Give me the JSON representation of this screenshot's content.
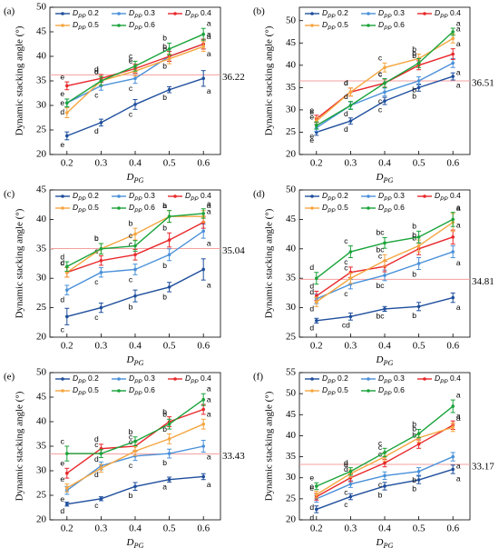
{
  "chart_data": [
    {
      "type": "line",
      "title": "(a)",
      "x_label": "DPG",
      "y_label": "Dynamic stacking angle (°)",
      "categories": [
        "0.2",
        "0.3",
        "0.4",
        "0.5",
        "0.6"
      ],
      "ylim": [
        20,
        50
      ],
      "yticks": [
        20,
        25,
        30,
        35,
        40,
        45,
        50
      ],
      "reference": 36.22,
      "series": [
        {
          "name": "DPP 0.2",
          "color": "#1f4e9c",
          "values": [
            23.8,
            26.5,
            30.2,
            33.2,
            35.5
          ],
          "errors": [
            0.8,
            0.7,
            1.0,
            0.6,
            1.6
          ],
          "letters": [
            "e",
            "d",
            "c",
            "b",
            "a"
          ]
        },
        {
          "name": "DPP 0.3",
          "color": "#4a90d9",
          "values": [
            30.5,
            34,
            35.5,
            40,
            42.5
          ],
          "errors": [
            0.8,
            0.9,
            1.0,
            1.0,
            1.0
          ],
          "letters": [
            "d",
            "c",
            "c",
            "b",
            "a"
          ]
        },
        {
          "name": "DPP 0.4",
          "color": "#e8282b",
          "values": [
            34,
            35.5,
            37.5,
            40,
            42.5
          ],
          "errors": [
            0.8,
            0.8,
            0.9,
            1.0,
            1.0
          ],
          "letters": [
            "e",
            "d",
            "c",
            "b",
            "a"
          ]
        },
        {
          "name": "DPP 0.5",
          "color": "#f5a640",
          "values": [
            28.5,
            35,
            37,
            39.5,
            42
          ],
          "errors": [
            1.0,
            0.9,
            1.0,
            1.0,
            1.0
          ],
          "letters": [
            "e",
            "d",
            "c",
            "b",
            "a"
          ]
        },
        {
          "name": "DPP 0.6",
          "color": "#1aa33a",
          "values": [
            30.5,
            35,
            38,
            41.5,
            44.5
          ],
          "errors": [
            0.8,
            0.9,
            1.0,
            1.2,
            1.2
          ],
          "letters": [
            "e",
            "d",
            "c",
            "b",
            "a"
          ]
        }
      ]
    },
    {
      "type": "line",
      "title": "(b)",
      "x_label": "DPG",
      "y_label": "Dynamic stacking angle (°)",
      "categories": [
        "0.2",
        "0.3",
        "0.4",
        "0.5",
        "0.6"
      ],
      "ylim": [
        20,
        53
      ],
      "yticks": [
        20,
        25,
        30,
        35,
        40,
        45,
        50
      ],
      "reference": 36.51,
      "series": [
        {
          "name": "DPP 0.2",
          "color": "#1f4e9c",
          "values": [
            25,
            27.5,
            32,
            35,
            37.5
          ],
          "errors": [
            0.7,
            0.7,
            0.8,
            0.8,
            0.8
          ],
          "letters": [
            "e",
            "d",
            "c",
            "b",
            "a"
          ]
        },
        {
          "name": "DPP 0.3",
          "color": "#4a90d9",
          "values": [
            26,
            31,
            34,
            36.5,
            40.5
          ],
          "errors": [
            0.8,
            0.8,
            0.9,
            0.9,
            1.0
          ],
          "letters": [
            "e",
            "d",
            "c",
            "b",
            "a"
          ]
        },
        {
          "name": "DPP 0.4",
          "color": "#e8282b",
          "values": [
            28,
            34,
            36,
            40,
            42.5
          ],
          "errors": [
            0.8,
            0.9,
            0.9,
            1.0,
            1.2
          ],
          "letters": [
            "e",
            "d",
            "c",
            "b",
            "a"
          ]
        },
        {
          "name": "DPP 0.5",
          "color": "#f5a640",
          "values": [
            27.5,
            34,
            39.5,
            41.5,
            46
          ],
          "errors": [
            0.8,
            0.9,
            1.0,
            1.0,
            1.0
          ],
          "letters": [
            "e",
            "d",
            "c",
            "b",
            "a"
          ]
        },
        {
          "name": "DPP 0.6",
          "color": "#1aa33a",
          "values": [
            26.5,
            31,
            36,
            40.5,
            47.5
          ],
          "errors": [
            0.8,
            0.9,
            1.0,
            1.0,
            0.8
          ],
          "letters": [
            "e",
            "d",
            "c",
            "b",
            "a"
          ]
        }
      ]
    },
    {
      "type": "line",
      "title": "(c)",
      "x_label": "DPG",
      "y_label": "Dynamic stacking angle (°)",
      "categories": [
        "0.2",
        "0.3",
        "0.4",
        "0.5",
        "0.6"
      ],
      "ylim": [
        20,
        45
      ],
      "yticks": [
        20,
        25,
        30,
        35,
        40,
        45
      ],
      "reference": 35.04,
      "series": [
        {
          "name": "DPP 0.2",
          "color": "#1f4e9c",
          "values": [
            23.5,
            25,
            27,
            28.5,
            31.5
          ],
          "errors": [
            1.4,
            0.8,
            1.0,
            0.8,
            1.8
          ],
          "letters": [
            "c",
            "c",
            "b",
            "b",
            "a"
          ]
        },
        {
          "name": "DPP 0.3",
          "color": "#4a90d9",
          "values": [
            28,
            31,
            31.5,
            34,
            38
          ],
          "errors": [
            0.8,
            0.8,
            0.9,
            1.0,
            1.2
          ],
          "letters": [
            "d",
            "c",
            "c",
            "b",
            "a"
          ]
        },
        {
          "name": "DPP 0.4",
          "color": "#e8282b",
          "values": [
            31,
            33,
            34,
            36.5,
            39.5
          ],
          "errors": [
            0.8,
            0.8,
            0.9,
            1.2,
            1.0
          ],
          "letters": [
            "d",
            "c",
            "c",
            "b",
            "a"
          ]
        },
        {
          "name": "DPP 0.5",
          "color": "#f5a640",
          "values": [
            31,
            35,
            37.5,
            40.5,
            40.5
          ],
          "errors": [
            0.8,
            0.9,
            1.0,
            1.0,
            1.0
          ],
          "letters": [
            "c",
            "b",
            "b",
            "a",
            "a"
          ]
        },
        {
          "name": "DPP 0.6",
          "color": "#1aa33a",
          "values": [
            32,
            35,
            35.5,
            40.5,
            41
          ],
          "errors": [
            0.8,
            0.9,
            0.9,
            1.0,
            0.8
          ],
          "letters": [
            "d",
            "c",
            "c",
            "b",
            "a"
          ]
        }
      ]
    },
    {
      "type": "line",
      "title": "(d)",
      "x_label": "DPG",
      "y_label": "Dynamic stacking angle (°)",
      "categories": [
        "0.2",
        "0.3",
        "0.4",
        "0.5",
        "0.6"
      ],
      "ylim": [
        25,
        50
      ],
      "yticks": [
        25,
        30,
        35,
        40,
        45,
        50
      ],
      "reference": 34.81,
      "series": [
        {
          "name": "DPP 0.2",
          "color": "#1f4e9c",
          "values": [
            27.8,
            28.5,
            29.8,
            30.2,
            31.7
          ],
          "errors": [
            0.4,
            0.6,
            0.4,
            0.7,
            0.8
          ],
          "letters": [
            "d",
            "cd",
            "bc",
            "b",
            "a"
          ]
        },
        {
          "name": "DPP 0.3",
          "color": "#4a90d9",
          "values": [
            31.5,
            34,
            35.5,
            37.5,
            39.5
          ],
          "errors": [
            0.8,
            0.8,
            0.9,
            1.0,
            1.0
          ],
          "letters": [
            "d",
            "c",
            "bc",
            "b",
            "a"
          ]
        },
        {
          "name": "DPP 0.4",
          "color": "#e8282b",
          "values": [
            32,
            36,
            37,
            40,
            42
          ],
          "errors": [
            0.8,
            0.9,
            0.9,
            1.0,
            1.2
          ],
          "letters": [
            "d",
            "c",
            "c",
            "b",
            "a"
          ]
        },
        {
          "name": "DPP 0.5",
          "color": "#f5a640",
          "values": [
            31,
            35,
            38,
            40.5,
            44.5
          ],
          "errors": [
            0.8,
            0.9,
            1.0,
            1.0,
            1.5
          ],
          "letters": [
            "d",
            "c",
            "bc",
            "b",
            "a"
          ]
        },
        {
          "name": "DPP 0.6",
          "color": "#1aa33a",
          "values": [
            35,
            39.5,
            41,
            42,
            45
          ],
          "errors": [
            1.0,
            1.0,
            0.9,
            1.0,
            1.2
          ],
          "letters": [
            "d",
            "c",
            "bc",
            "b",
            "a"
          ]
        }
      ]
    },
    {
      "type": "line",
      "title": "(e)",
      "x_label": "DPG",
      "y_label": "Dynamic stacking angle (°)",
      "categories": [
        "0.2",
        "0.3",
        "0.4",
        "0.5",
        "0.6"
      ],
      "ylim": [
        20,
        50
      ],
      "yticks": [
        20,
        25,
        30,
        35,
        40,
        45,
        50
      ],
      "reference": 33.43,
      "series": [
        {
          "name": "DPP 0.2",
          "color": "#1f4e9c",
          "values": [
            23.2,
            24.3,
            26.8,
            28.2,
            28.8
          ],
          "errors": [
            0.4,
            0.4,
            0.8,
            0.5,
            0.6
          ],
          "letters": [
            "d",
            "c",
            "b",
            "a",
            "a"
          ]
        },
        {
          "name": "DPP 0.3",
          "color": "#4a90d9",
          "values": [
            26,
            31,
            33,
            33.5,
            35
          ],
          "errors": [
            0.8,
            0.8,
            0.9,
            0.9,
            1.2
          ],
          "letters": [
            "e",
            "d",
            "c",
            "b",
            "a"
          ]
        },
        {
          "name": "DPP 0.4",
          "color": "#e8282b",
          "values": [
            29.5,
            34.5,
            35,
            40,
            42.5
          ],
          "errors": [
            1.0,
            0.9,
            0.9,
            1.0,
            1.0
          ],
          "letters": [
            "e",
            "d",
            "c",
            "b",
            "a"
          ]
        },
        {
          "name": "DPP 0.5",
          "color": "#f5a640",
          "values": [
            26.5,
            30.5,
            34,
            36.5,
            39.5
          ],
          "errors": [
            0.8,
            0.8,
            0.9,
            1.0,
            1.0
          ],
          "letters": [
            "e",
            "d",
            "c",
            "b",
            "a"
          ]
        },
        {
          "name": "DPP 0.6",
          "color": "#1aa33a",
          "values": [
            33.5,
            33.5,
            36,
            39.5,
            44.5
          ],
          "errors": [
            1.5,
            0.8,
            0.9,
            1.0,
            1.2
          ],
          "letters": [
            "c",
            "c",
            "b",
            "b",
            "a"
          ]
        }
      ]
    },
    {
      "type": "line",
      "title": "(f)",
      "x_label": "DPG",
      "y_label": "Dynamic stacking angle (°)",
      "categories": [
        "0.2",
        "0.3",
        "0.4",
        "0.5",
        "0.6"
      ],
      "ylim": [
        20,
        55
      ],
      "yticks": [
        20,
        25,
        30,
        35,
        40,
        45,
        50,
        55
      ],
      "reference": 33.17,
      "series": [
        {
          "name": "DPP 0.2",
          "color": "#1f4e9c",
          "values": [
            22.5,
            25.5,
            28,
            29.5,
            32
          ],
          "errors": [
            0.8,
            0.7,
            0.9,
            0.9,
            1.0
          ],
          "letters": [
            "d",
            "c",
            "b",
            "b",
            "a"
          ]
        },
        {
          "name": "DPP 0.3",
          "color": "#4a90d9",
          "values": [
            25,
            28.5,
            30.5,
            31.5,
            35
          ],
          "errors": [
            0.8,
            0.8,
            0.9,
            0.9,
            1.0
          ],
          "letters": [
            "d",
            "c",
            "c",
            "b",
            "a"
          ]
        },
        {
          "name": "DPP 0.4",
          "color": "#e8282b",
          "values": [
            25.5,
            30,
            33.5,
            38,
            42.5
          ],
          "errors": [
            0.8,
            0.9,
            0.9,
            1.0,
            1.0
          ],
          "letters": [
            "e",
            "d",
            "c",
            "b",
            "a"
          ]
        },
        {
          "name": "DPP 0.5",
          "color": "#f5a640",
          "values": [
            26,
            31,
            35,
            39.5,
            42
          ],
          "errors": [
            0.8,
            0.9,
            1.0,
            1.0,
            1.0
          ],
          "letters": [
            "e",
            "d",
            "c",
            "b",
            "a"
          ]
        },
        {
          "name": "DPP 0.6",
          "color": "#1aa33a",
          "values": [
            28,
            31.5,
            36,
            40.5,
            47
          ],
          "errors": [
            0.8,
            0.9,
            1.0,
            1.0,
            1.5
          ],
          "letters": [
            "e",
            "d",
            "c",
            "b",
            "a"
          ]
        }
      ]
    }
  ]
}
